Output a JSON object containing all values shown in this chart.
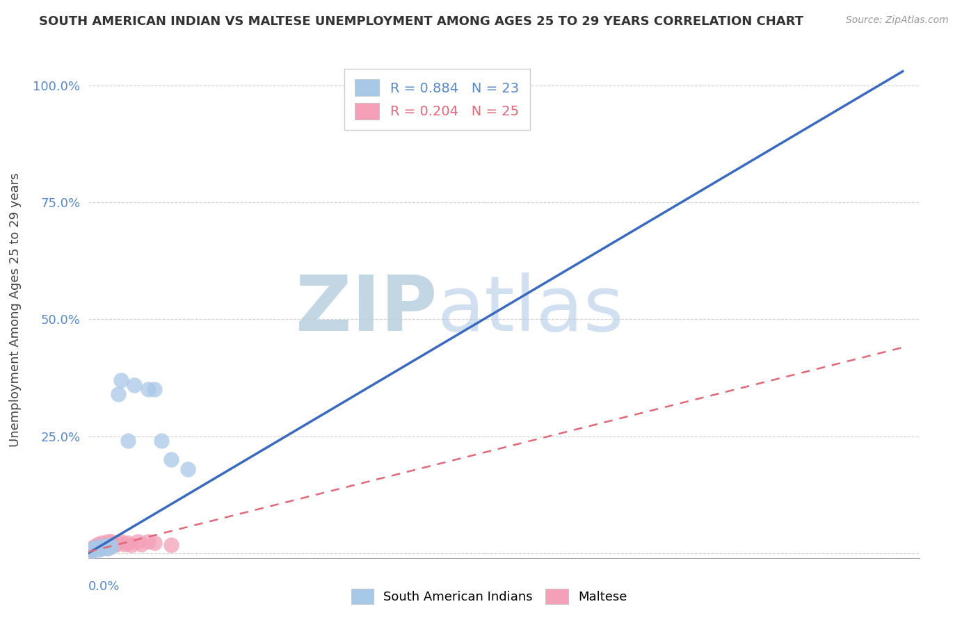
{
  "title": "SOUTH AMERICAN INDIAN VS MALTESE UNEMPLOYMENT AMONG AGES 25 TO 29 YEARS CORRELATION CHART",
  "source": "Source: ZipAtlas.com",
  "ylabel": "Unemployment Among Ages 25 to 29 years",
  "yticks": [
    0.0,
    0.25,
    0.5,
    0.75,
    1.0
  ],
  "ytick_labels": [
    "",
    "25.0%",
    "50.0%",
    "75.0%",
    "100.0%"
  ],
  "xlim": [
    0.0,
    0.25
  ],
  "ylim": [
    -0.01,
    1.05
  ],
  "legend_entries": [
    {
      "label": "R = 0.884   N = 23",
      "color": "#a8c8e8"
    },
    {
      "label": "R = 0.204   N = 25",
      "color": "#f4a0b8"
    }
  ],
  "legend_labels": [
    "South American Indians",
    "Maltese"
  ],
  "blue_scatter_x": [
    0.001,
    0.001,
    0.002,
    0.002,
    0.003,
    0.003,
    0.004,
    0.004,
    0.005,
    0.005,
    0.006,
    0.006,
    0.007,
    0.009,
    0.01,
    0.012,
    0.014,
    0.018,
    0.02,
    0.022,
    0.025,
    0.03,
    0.115
  ],
  "blue_scatter_y": [
    0.005,
    0.008,
    0.01,
    0.012,
    0.008,
    0.014,
    0.01,
    0.015,
    0.012,
    0.015,
    0.01,
    0.018,
    0.015,
    0.34,
    0.37,
    0.24,
    0.36,
    0.35,
    0.35,
    0.24,
    0.2,
    0.18,
    1.0
  ],
  "pink_scatter_x": [
    0.001,
    0.001,
    0.002,
    0.002,
    0.003,
    0.003,
    0.004,
    0.004,
    0.005,
    0.005,
    0.006,
    0.006,
    0.007,
    0.007,
    0.008,
    0.009,
    0.01,
    0.011,
    0.012,
    0.013,
    0.015,
    0.016,
    0.018,
    0.02,
    0.025
  ],
  "pink_scatter_y": [
    0.005,
    0.01,
    0.012,
    0.015,
    0.018,
    0.02,
    0.022,
    0.01,
    0.015,
    0.02,
    0.012,
    0.025,
    0.02,
    0.025,
    0.018,
    0.022,
    0.025,
    0.02,
    0.022,
    0.018,
    0.025,
    0.02,
    0.025,
    0.022,
    0.018
  ],
  "blue_color": "#a8c8e8",
  "pink_color": "#f4a0b8",
  "blue_line_color": "#3a6abf",
  "pink_line_color": "#e06878",
  "blue_line_x": [
    0.0,
    0.245
  ],
  "blue_line_y": [
    0.0,
    1.03
  ],
  "pink_line_x": [
    0.0,
    0.245
  ],
  "pink_line_y": [
    0.003,
    0.44
  ],
  "watermark_zip": "ZIP",
  "watermark_atlas": "atlas",
  "watermark_color": "#ccdaec",
  "watermark_atlas_color": "#c8d8e8",
  "background_color": "#ffffff",
  "grid_color": "#d0d0d0"
}
